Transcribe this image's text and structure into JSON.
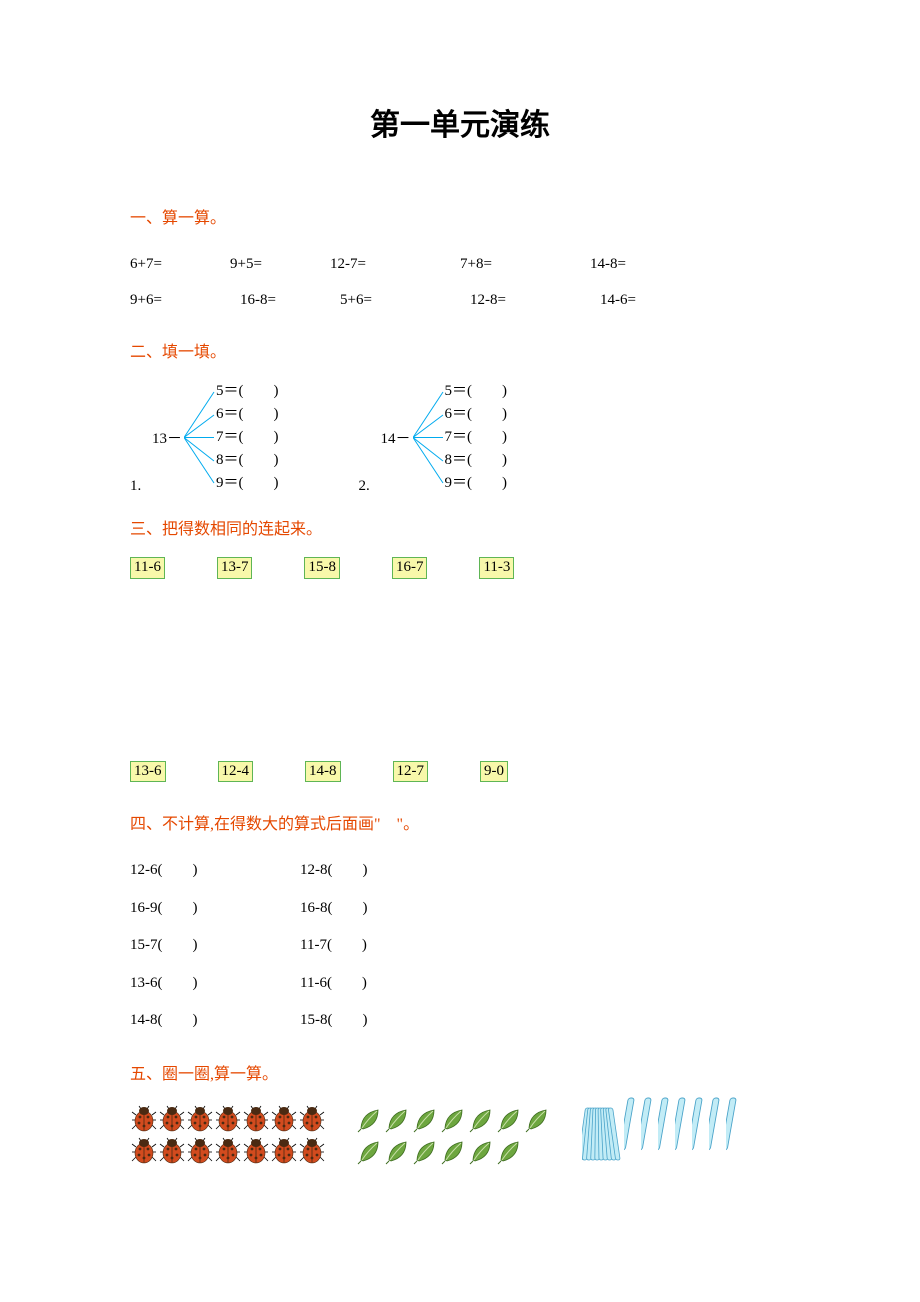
{
  "title": "第一单元演练",
  "section1": {
    "heading": "一、算一算。",
    "row1": [
      "6+7=",
      "9+5=",
      "12-7=",
      "7+8=",
      "14-8="
    ],
    "row2": [
      "9+6=",
      "16-8=",
      "5+6=",
      "12-8=",
      "14-6="
    ]
  },
  "section2": {
    "heading": "二、填一填。",
    "blocks": [
      {
        "idx": "1.",
        "root": "13－",
        "items": [
          "5＝(　　)",
          "6＝(　　)",
          "7＝(　　)",
          "8＝(　　)",
          "9＝(　　)"
        ]
      },
      {
        "idx": "2.",
        "root": "14－",
        "items": [
          "5＝(　　)",
          "6＝(　　)",
          "7＝(　　)",
          "8＝(　　)",
          "9＝(　　)"
        ]
      }
    ],
    "fan_color": "#00aaee"
  },
  "section3": {
    "heading": "三、把得数相同的连起来。",
    "top": [
      "11-6",
      "13-7",
      "15-8",
      "16-7",
      "11-3"
    ],
    "bottom": [
      "13-6",
      "12-4",
      "14-8",
      "12-7",
      "9-0"
    ],
    "chip_bg": "#f8f8aa",
    "chip_border": "#5fb555"
  },
  "section4": {
    "heading": "四、不计算,在得数大的算式后面画\"　\"。",
    "pairs": [
      [
        "12-6(　　)",
        "12-8(　　)"
      ],
      [
        "16-9(　　)",
        "16-8(　　)"
      ],
      [
        "15-7(　　)",
        "11-7(　　)"
      ],
      [
        "13-6(　　)",
        "11-6(　　)"
      ],
      [
        "14-8(　　)",
        "15-8(　　)"
      ]
    ]
  },
  "section5": {
    "heading": "五、圈一圈,算一算。",
    "bugs_rows": 2,
    "bugs_cols": 7,
    "bug_colors": {
      "body": "#d24b1e",
      "spot": "#4a2a12",
      "head": "#4a2a12",
      "leg": "#000000"
    },
    "leaves_rows": [
      7,
      6
    ],
    "leaf_colors": {
      "fill": "#6da63f",
      "stroke": "#3d6c1f",
      "vein": "#c9e0a8"
    },
    "sticks": {
      "bundle": 1,
      "singles": 7,
      "fill": "#c2ecf6",
      "stroke": "#4aa3c9"
    }
  },
  "colors": {
    "heading": "#e54800",
    "text": "#000000",
    "bg": "#ffffff"
  }
}
